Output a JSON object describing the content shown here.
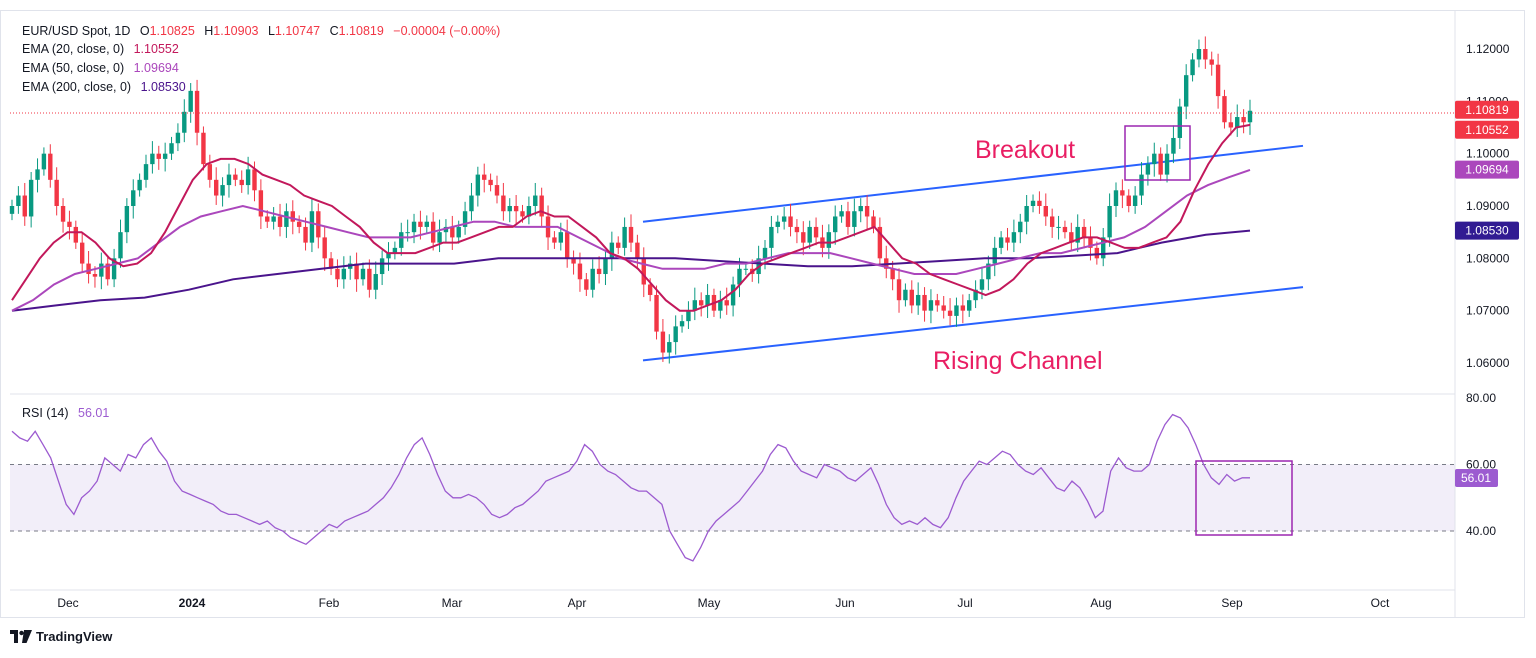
{
  "header": {
    "symbol": "EUR/USD Spot, 1D",
    "o_label": "O",
    "o_value": "1.10825",
    "h_label": "H",
    "h_value": "1.10903",
    "l_label": "L",
    "l_value": "1.10747",
    "c_label": "C",
    "c_value": "1.10819",
    "change": "−0.00004 (−0.00%)",
    "ema20_label": "EMA (20, close, 0)",
    "ema20_value": "1.10552",
    "ema50_label": "EMA (50, close, 0)",
    "ema50_value": "1.09694",
    "ema200_label": "EMA (200, close, 0)",
    "ema200_value": "1.08530",
    "rsi_label": "RSI (14)",
    "rsi_value": "56.01"
  },
  "colors": {
    "up": "#089981",
    "down": "#f23645",
    "ema20": "#c2185b",
    "ema50": "#ab47bc",
    "ema200": "#4a148c",
    "trendline": "#2962ff",
    "annotation": "#e91e63",
    "rsi": "#9c5bd0"
  },
  "branding": {
    "logo_text": "TradingView"
  },
  "chart_data": [
    {
      "type": "candlestick",
      "title": "EUR/USD Spot, 1D",
      "x_ticks": [
        "Dec",
        "2024",
        "Feb",
        "Mar",
        "Apr",
        "May",
        "Jun",
        "Jul",
        "Aug",
        "Sep",
        "Oct"
      ],
      "y_ticks": [
        "1.12000",
        "1.11000",
        "1.10000",
        "1.09000",
        "1.08000",
        "1.07000",
        "1.06000"
      ],
      "ylim": [
        1.055,
        1.128
      ],
      "price_labels": [
        {
          "name": "last-close",
          "value": 1.10819,
          "text": "1.10819",
          "color": "#f23645"
        },
        {
          "name": "ema20",
          "value": 1.10552,
          "text": "1.10552",
          "color": "#f23645"
        },
        {
          "name": "ema50",
          "value": 1.09694,
          "text": "1.09694",
          "color": "#ab47bc"
        },
        {
          "name": "ema200",
          "value": 1.0853,
          "text": "1.08530",
          "color": "#311b92"
        }
      ],
      "close_path": [
        1.09,
        1.092,
        1.088,
        1.095,
        1.097,
        1.1,
        1.095,
        1.09,
        1.087,
        1.086,
        1.083,
        1.079,
        1.077,
        1.0765,
        1.079,
        1.076,
        1.08,
        1.085,
        1.09,
        1.093,
        1.095,
        1.098,
        1.1,
        1.099,
        1.1,
        1.102,
        1.104,
        1.108,
        1.112,
        1.104,
        1.098,
        1.095,
        1.092,
        1.094,
        1.096,
        1.095,
        1.094,
        1.097,
        1.093,
        1.088,
        1.087,
        1.088,
        1.086,
        1.089,
        1.087,
        1.086,
        1.083,
        1.089,
        1.084,
        1.08,
        1.078,
        1.076,
        1.078,
        1.079,
        1.076,
        1.078,
        1.074,
        1.077,
        1.08,
        1.081,
        1.082,
        1.085,
        1.085,
        1.087,
        1.086,
        1.087,
        1.083,
        1.085,
        1.086,
        1.084,
        1.086,
        1.089,
        1.092,
        1.096,
        1.095,
        1.094,
        1.092,
        1.089,
        1.09,
        1.089,
        1.088,
        1.09,
        1.092,
        1.088,
        1.084,
        1.083,
        1.085,
        1.08,
        1.079,
        1.076,
        1.074,
        1.078,
        1.077,
        1.08,
        1.083,
        1.082,
        1.086,
        1.083,
        1.08,
        1.075,
        1.073,
        1.066,
        1.062,
        1.064,
        1.067,
        1.068,
        1.07,
        1.072,
        1.071,
        1.073,
        1.07,
        1.072,
        1.071,
        1.075,
        1.078,
        1.078,
        1.077,
        1.08,
        1.082,
        1.086,
        1.087,
        1.088,
        1.086,
        1.085,
        1.083,
        1.086,
        1.084,
        1.082,
        1.085,
        1.088,
        1.089,
        1.086,
        1.089,
        1.09,
        1.088,
        1.086,
        1.08,
        1.078,
        1.076,
        1.072,
        1.074,
        1.071,
        1.073,
        1.07,
        1.072,
        1.071,
        1.07,
        1.069,
        1.071,
        1.07,
        1.072,
        1.074,
        1.076,
        1.079,
        1.082,
        1.084,
        1.083,
        1.085,
        1.087,
        1.09,
        1.091,
        1.09,
        1.088,
        1.086,
        1.086,
        1.085,
        1.083,
        1.086,
        1.084,
        1.082,
        1.08,
        1.084,
        1.09,
        1.093,
        1.092,
        1.09,
        1.092,
        1.096,
        1.098,
        1.1,
        1.096,
        1.1,
        1.103,
        1.109,
        1.115,
        1.118,
        1.12,
        1.118,
        1.117,
        1.111,
        1.106,
        1.105,
        1.107,
        1.106,
        1.1082
      ],
      "ema20": [
        1.072,
        1.076,
        1.08,
        1.083,
        1.085,
        1.085,
        1.083,
        1.08,
        1.0785,
        1.079,
        1.081,
        1.085,
        1.09,
        1.095,
        1.098,
        1.099,
        1.099,
        1.098,
        1.096,
        1.095,
        1.094,
        1.092,
        1.091,
        1.09,
        1.088,
        1.086,
        1.083,
        1.081,
        1.081,
        1.081,
        1.082,
        1.083,
        1.083,
        1.084,
        1.085,
        1.086,
        1.086,
        1.088,
        1.089,
        1.088,
        1.088,
        1.086,
        1.084,
        1.081,
        1.08,
        1.078,
        1.075,
        1.072,
        1.07,
        1.07,
        1.071,
        1.072,
        1.074,
        1.077,
        1.079,
        1.08,
        1.081,
        1.082,
        1.083,
        1.083,
        1.084,
        1.085,
        1.086,
        1.083,
        1.08,
        1.079,
        1.077,
        1.076,
        1.075,
        1.074,
        1.073,
        1.074,
        1.076,
        1.079,
        1.081,
        1.082,
        1.083,
        1.084,
        1.084,
        1.083,
        1.082,
        1.082,
        1.083,
        1.084,
        1.087,
        1.093,
        1.098,
        1.102,
        1.105,
        1.1055
      ],
      "ema50": [
        1.07,
        1.072,
        1.075,
        1.077,
        1.078,
        1.079,
        1.08,
        1.083,
        1.086,
        1.088,
        1.089,
        1.09,
        1.089,
        1.088,
        1.087,
        1.086,
        1.085,
        1.084,
        1.084,
        1.084,
        1.085,
        1.086,
        1.087,
        1.087,
        1.086,
        1.086,
        1.086,
        1.084,
        1.082,
        1.08,
        1.079,
        1.078,
        1.078,
        1.078,
        1.079,
        1.079,
        1.08,
        1.081,
        1.081,
        1.081,
        1.08,
        1.079,
        1.078,
        1.077,
        1.077,
        1.077,
        1.078,
        1.079,
        1.08,
        1.081,
        1.081,
        1.082,
        1.083,
        1.084,
        1.086,
        1.089,
        1.092,
        1.094,
        1.0955,
        1.0969
      ],
      "ema200": [
        1.07,
        1.071,
        1.072,
        1.0725,
        1.074,
        1.076,
        1.077,
        1.078,
        1.079,
        1.079,
        1.079,
        1.08,
        1.08,
        1.08,
        1.08,
        1.08,
        1.0795,
        1.079,
        1.0785,
        1.0785,
        1.079,
        1.0795,
        1.08,
        1.08,
        1.0805,
        1.081,
        1.083,
        1.0845,
        1.0853
      ],
      "trendlines": [
        {
          "name": "channel-upper",
          "from": [
            0,
            1.087
          ],
          "to": [
            1,
            1.1015
          ]
        },
        {
          "name": "channel-lower",
          "from": [
            0,
            1.0605
          ],
          "to": [
            1,
            1.0745
          ]
        }
      ],
      "annotations": [
        {
          "name": "breakout-label",
          "text": "Breakout"
        },
        {
          "name": "rising-channel-label",
          "text": "Rising Channel"
        }
      ]
    },
    {
      "type": "line",
      "title": "RSI (14)",
      "value": 56.01,
      "y_ticks": [
        "80.00",
        "60.00",
        "40.00"
      ],
      "ylim": [
        20,
        80
      ],
      "band": [
        40,
        60
      ],
      "values": [
        70,
        68,
        67,
        70,
        66,
        62,
        55,
        48,
        45,
        50,
        52,
        55,
        62,
        60,
        58,
        63,
        62,
        66,
        68,
        64,
        61,
        55,
        52,
        51,
        50,
        49,
        48,
        46,
        45,
        45,
        44,
        43,
        42,
        43,
        41,
        40,
        38,
        37,
        36,
        38,
        40,
        42,
        41,
        43,
        44,
        45,
        46,
        48,
        50,
        53,
        57,
        62,
        66,
        68,
        63,
        57,
        52,
        50,
        50,
        51,
        50,
        48,
        45,
        44,
        45,
        47,
        48,
        50,
        52,
        55,
        56,
        57,
        58,
        61,
        66,
        64,
        60,
        58,
        57,
        55,
        53,
        52,
        52,
        50,
        48,
        40,
        36,
        32,
        31,
        35,
        40,
        43,
        45,
        47,
        49,
        52,
        55,
        58,
        63,
        66,
        65,
        61,
        58,
        57,
        56,
        60,
        59,
        58,
        56,
        55,
        57,
        59,
        54,
        48,
        44,
        42,
        43,
        42,
        44,
        42,
        41,
        44,
        50,
        55,
        58,
        61,
        60,
        62,
        64,
        63,
        60,
        58,
        57,
        59,
        56,
        53,
        52,
        55,
        53,
        49,
        44,
        46,
        58,
        62,
        59,
        58,
        58,
        60,
        67,
        72,
        75,
        74,
        71,
        66,
        60,
        56,
        54,
        57,
        55,
        56,
        56.01
      ]
    }
  ]
}
